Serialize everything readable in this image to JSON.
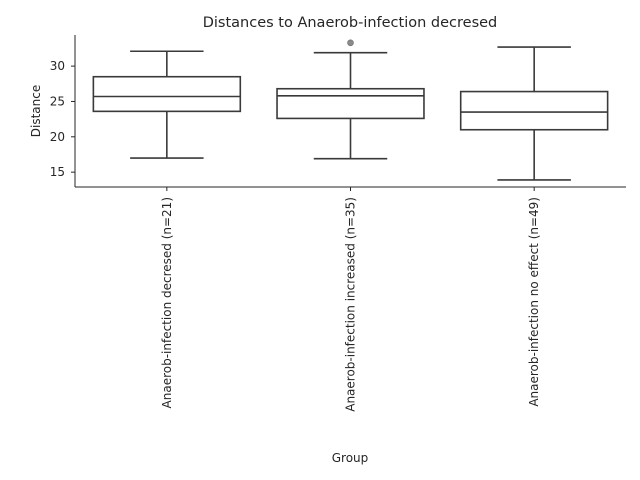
{
  "chart_data": {
    "type": "box",
    "title": "Distances to Anaerob-infection decresed",
    "xlabel": "Group",
    "ylabel": "Distance",
    "ylim": [
      12.9,
      34.4
    ],
    "yticks": [
      15,
      20,
      25,
      30
    ],
    "grid": false,
    "categories": [
      "Anaerob-infection decresed (n=21)",
      "Anaerob-infection increased (n=35)",
      "Anaerob-infection no effect (n=49)"
    ],
    "boxes": [
      {
        "whisker_low": 17.0,
        "q1": 23.6,
        "median": 25.7,
        "q3": 28.5,
        "whisker_high": 32.1,
        "outliers": []
      },
      {
        "whisker_low": 16.9,
        "q1": 22.6,
        "median": 25.8,
        "q3": 26.8,
        "whisker_high": 31.9,
        "outliers": [
          33.3
        ]
      },
      {
        "whisker_low": 13.9,
        "q1": 21.0,
        "median": 23.5,
        "q3": 26.4,
        "whisker_high": 32.7,
        "outliers": []
      }
    ]
  }
}
